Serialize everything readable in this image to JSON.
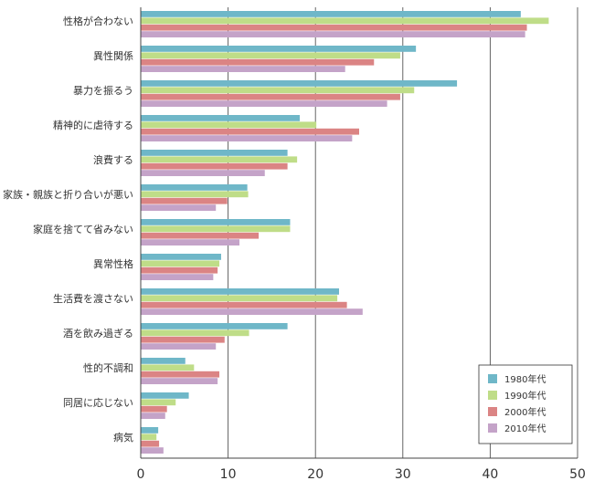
{
  "chart_data": {
    "type": "bar",
    "orientation": "horizontal",
    "categories": [
      "性格が合わない",
      "異性関係",
      "暴力を振るう",
      "精神的に虐待する",
      "浪費する",
      "家族・親族と折り合いが悪い",
      "家庭を捨てて省みない",
      "異常性格",
      "生活費を渡さない",
      "酒を飲み過ぎる",
      "性的不調和",
      "同居に応じない",
      "病気"
    ],
    "series": [
      {
        "name": "1980年代",
        "color": "#6fb7c8",
        "values": [
          43.5,
          31.5,
          36.2,
          18.2,
          16.8,
          12.2,
          17.1,
          9.2,
          22.7,
          16.8,
          5.1,
          5.5,
          2.0
        ]
      },
      {
        "name": "1990年代",
        "color": "#bfdd88",
        "values": [
          46.7,
          29.7,
          31.3,
          20.1,
          17.9,
          12.3,
          17.1,
          9.0,
          22.5,
          12.4,
          6.1,
          4.0,
          1.8
        ]
      },
      {
        "name": "2000年代",
        "color": "#db8484",
        "values": [
          44.2,
          26.7,
          29.7,
          25.0,
          16.8,
          9.9,
          13.5,
          8.8,
          23.6,
          9.6,
          9.0,
          3.0,
          2.1
        ]
      },
      {
        "name": "2010年代",
        "color": "#c4a3c8",
        "values": [
          44.0,
          23.4,
          28.2,
          24.2,
          14.2,
          8.6,
          11.3,
          8.3,
          25.4,
          8.6,
          8.8,
          2.8,
          2.6
        ]
      }
    ],
    "xlim": [
      0,
      50
    ],
    "xticks": [
      "0",
      "10",
      "20",
      "30",
      "40",
      "50"
    ],
    "grid": true,
    "legend_position": "bottom-right",
    "title": "",
    "xlabel": "",
    "ylabel": ""
  }
}
